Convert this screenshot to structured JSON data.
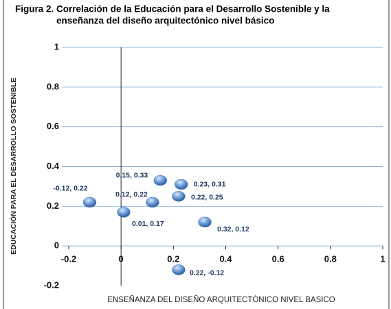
{
  "chart_data": {
    "type": "scatter",
    "title": [
      "Figura 2.  Correlación de la Educación para el Desarrollo Sostenible y la",
      "enseñanza del diseño arquitectónico nivel básico"
    ],
    "x_label": "ENSEÑANZA DEL DISEÑO ARQUITECTÓNICO NIVEL BASICO",
    "y_label": "EDUCACIÓN PARA EL DESARROLLO SOSTENIBLE",
    "x": [
      -0.12,
      0.15,
      0.12,
      0.01,
      0.23,
      0.22,
      0.32,
      0.22
    ],
    "values": [
      0.22,
      0.33,
      0.22,
      0.17,
      0.31,
      0.25,
      0.12,
      -0.12
    ],
    "value_labels": [
      "-0.12, 0.22",
      "0.15, 0.33",
      "0.12, 0.22",
      "0.01, 0.17",
      "0.23, 0.31",
      "0.22, 0.25",
      "0.32, 0.12",
      "0.22, -0.12"
    ],
    "color": "#4a7fc1",
    "xlim": [
      -0.2,
      1
    ],
    "xticks": [
      -0.2,
      0,
      0.2,
      0.4,
      0.6,
      0.8,
      1
    ],
    "ylim": [
      -0.2,
      1
    ],
    "yticks": [
      -0.2,
      0,
      0.2,
      0.4,
      0.6,
      0.8,
      1
    ],
    "grid": true
  }
}
